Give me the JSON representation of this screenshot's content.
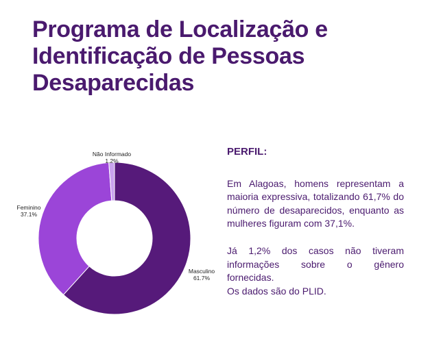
{
  "title_lines": [
    "Programa de Localização e",
    "Identificação de Pessoas",
    "Desaparecidas"
  ],
  "chart_data": {
    "type": "pie",
    "donut": true,
    "categories": [
      "Masculino",
      "Feminino",
      "Não Informado"
    ],
    "values": [
      61.7,
      37.1,
      1.2
    ],
    "value_labels": [
      "61.7%",
      "37.1%",
      "1.2%"
    ],
    "colors": [
      "#561a7a",
      "#9b45d8",
      "#c9a3ee"
    ],
    "legend": "none"
  },
  "text": {
    "heading": "PERFIL:",
    "para1": "Em Alagoas, homens representam a maioria expressiva, totalizando 61,7% do número de desaparecidos, enquanto as mulheres figuram com 37,1%.",
    "para2_line1": "Já 1,2% dos casos não tiveram",
    "para2_line2": "informações sobre o gênero",
    "para2_line3": "fornecidas.",
    "para2_line4": "Os dados são do PLID."
  }
}
